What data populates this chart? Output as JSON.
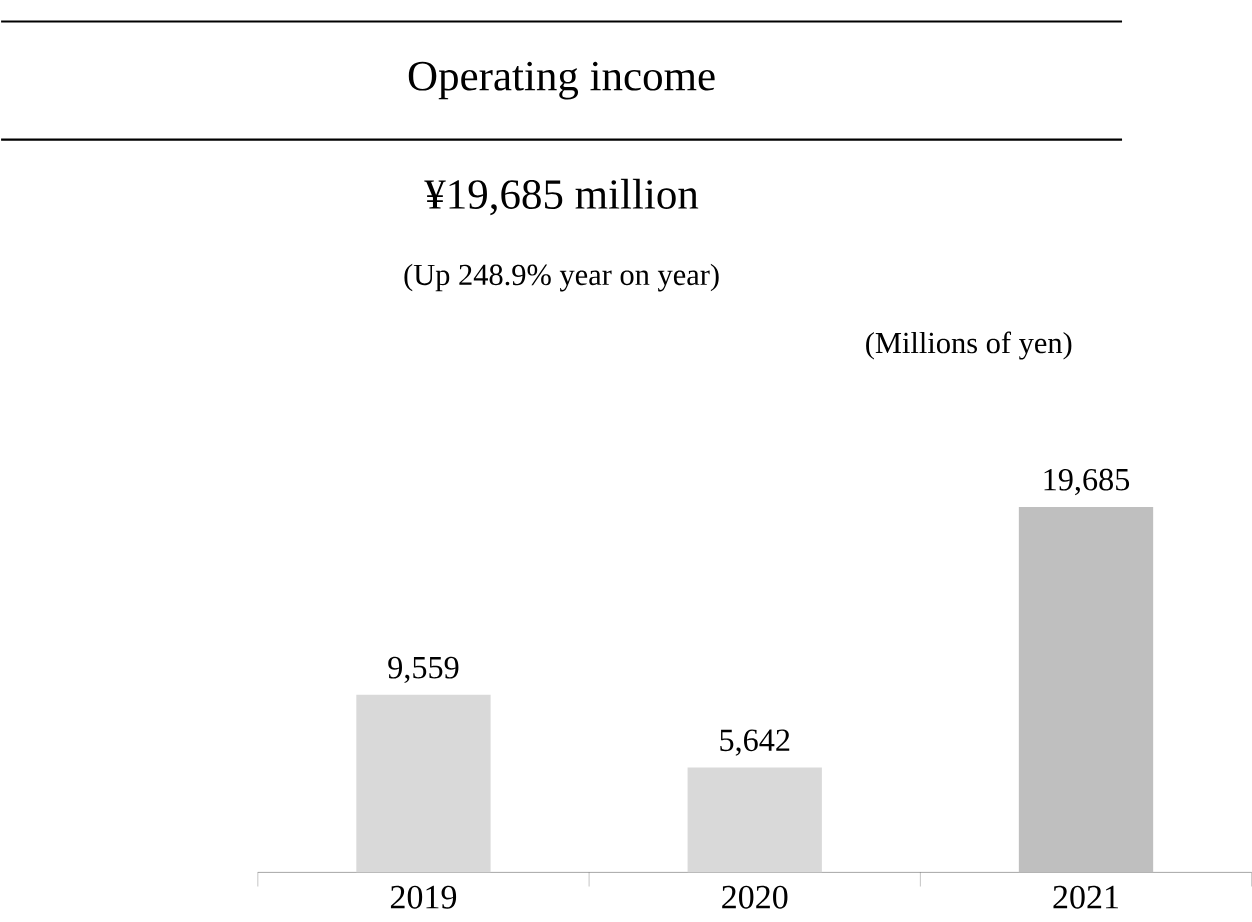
{
  "chart_data": {
    "type": "bar",
    "title": "Operating income",
    "subtitle": "¥19,685 million",
    "annotations": [
      "(Up 248.9% year on year)",
      "(Millions of yen)"
    ],
    "categories": [
      "2019",
      "2020",
      "2021"
    ],
    "values": [
      9559,
      5642,
      19685
    ],
    "colors": [
      "#d9d9d9",
      "#d9d9d9",
      "#bfbfbf"
    ],
    "value_labels": [
      "9,559",
      "5,642",
      "19,685"
    ]
  }
}
